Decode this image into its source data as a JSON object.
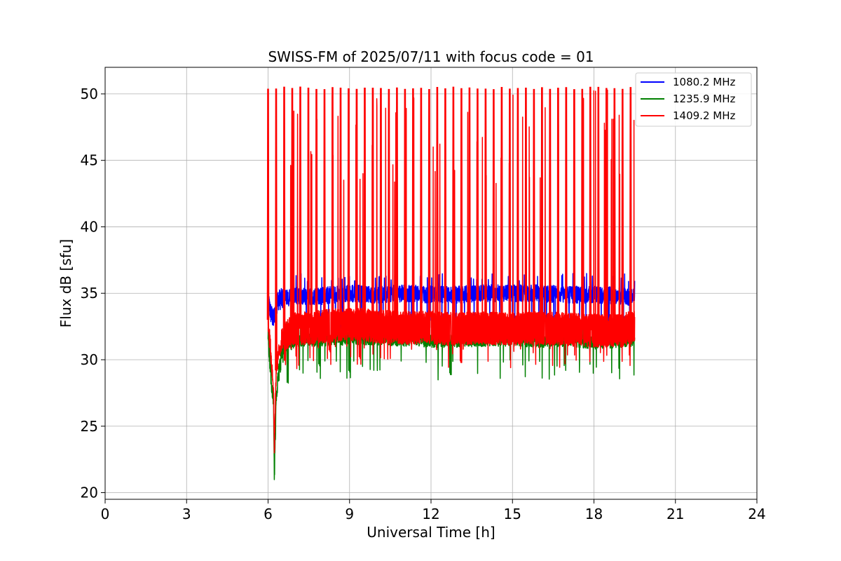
{
  "chart_data": {
    "type": "line",
    "title": "SWISS-FM of 2025/07/11 with focus code = 01",
    "xlabel": "Universal Time [h]",
    "ylabel": "Flux dB [sfu]",
    "xlim": [
      0,
      24
    ],
    "ylim": [
      19.5,
      52
    ],
    "xticks": [
      0,
      3,
      6,
      9,
      12,
      15,
      18,
      21,
      24
    ],
    "yticks": [
      20,
      25,
      30,
      35,
      40,
      45,
      50
    ],
    "grid": true,
    "legend_position": "top-right",
    "series": [
      {
        "name": "1080.2 MHz",
        "color": "#0000ff",
        "profile": [
          [
            6.0,
            34.5
          ],
          [
            6.1,
            33.5
          ],
          [
            6.2,
            33.0
          ],
          [
            6.35,
            34.5
          ],
          [
            7.0,
            34.8
          ],
          [
            8.0,
            34.8
          ],
          [
            9.0,
            35.0
          ],
          [
            10.0,
            34.9
          ],
          [
            11.0,
            35.0
          ],
          [
            12.0,
            34.9
          ],
          [
            13.0,
            34.9
          ],
          [
            14.0,
            35.0
          ],
          [
            15.0,
            35.0
          ],
          [
            16.0,
            35.0
          ],
          [
            17.0,
            34.9
          ],
          [
            18.0,
            34.9
          ],
          [
            19.0,
            34.8
          ],
          [
            19.5,
            34.7
          ]
        ],
        "band_high": 35.5,
        "band_low": 34.2,
        "spike_max": 36.5
      },
      {
        "name": "1235.9 MHz",
        "color": "#008000",
        "profile": [
          [
            6.0,
            32.0
          ],
          [
            6.1,
            29.0
          ],
          [
            6.2,
            27.0
          ],
          [
            6.23,
            21.0
          ],
          [
            6.3,
            27.5
          ],
          [
            6.5,
            30.5
          ],
          [
            7.0,
            31.5
          ],
          [
            8.0,
            31.5
          ],
          [
            9.0,
            31.6
          ],
          [
            10.0,
            31.6
          ],
          [
            11.0,
            31.5
          ],
          [
            12.0,
            31.4
          ],
          [
            13.0,
            31.4
          ],
          [
            14.0,
            31.5
          ],
          [
            15.0,
            31.5
          ],
          [
            16.0,
            31.4
          ],
          [
            17.0,
            31.5
          ],
          [
            18.0,
            31.3
          ],
          [
            19.0,
            31.4
          ],
          [
            19.5,
            31.5
          ]
        ],
        "band_high": 31.4,
        "band_low": 30.4,
        "spike_max": 33.0
      },
      {
        "name": "1409.2 MHz",
        "color": "#ff0000",
        "profile": [
          [
            6.0,
            33.0
          ],
          [
            6.1,
            30.5
          ],
          [
            6.2,
            28.0
          ],
          [
            6.23,
            23.0
          ],
          [
            6.3,
            29.5
          ],
          [
            6.5,
            31.5
          ],
          [
            7.0,
            32.3
          ],
          [
            8.0,
            32.5
          ],
          [
            9.0,
            32.7
          ],
          [
            10.0,
            32.5
          ],
          [
            11.0,
            32.4
          ],
          [
            12.0,
            32.4
          ],
          [
            13.0,
            32.3
          ],
          [
            14.0,
            32.4
          ],
          [
            15.0,
            32.3
          ],
          [
            16.0,
            32.4
          ],
          [
            17.0,
            32.3
          ],
          [
            18.0,
            32.2
          ],
          [
            19.0,
            32.2
          ],
          [
            19.5,
            32.5
          ]
        ],
        "band_high": 33.5,
        "band_low": 31.0,
        "spike_max": 50.4
      }
    ],
    "periodic_spikes": {
      "series": "1409.2 MHz",
      "peak": 50.4,
      "start": 6.0,
      "end": 19.35,
      "count": 46
    }
  }
}
